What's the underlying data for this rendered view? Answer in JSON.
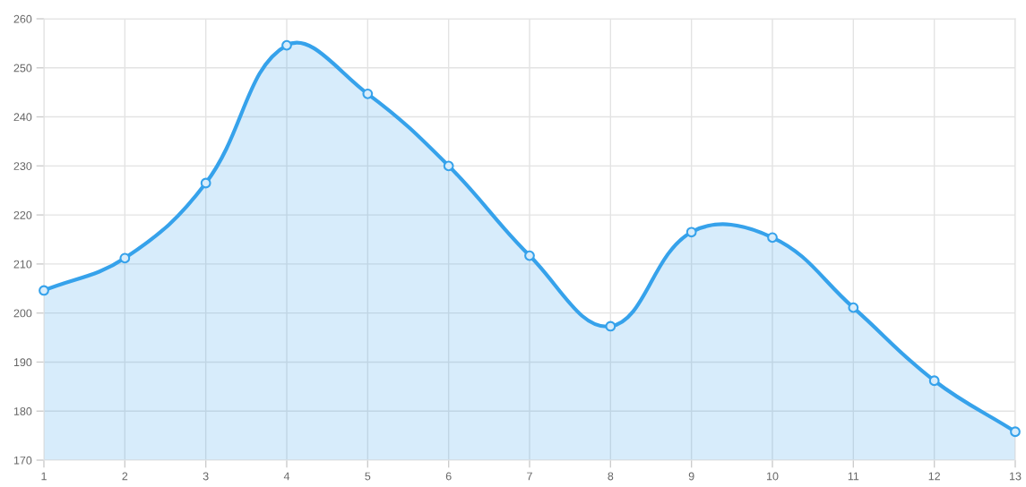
{
  "chart_data": {
    "type": "area",
    "x": [
      1,
      2,
      3,
      4,
      5,
      6,
      7,
      8,
      9,
      10,
      11,
      12,
      13
    ],
    "series": [
      {
        "color": "#36a2eb",
        "values": [
          204.6,
          211.2,
          226.5,
          254.6,
          244.7,
          230.0,
          211.7,
          197.3,
          216.5,
          215.4,
          201.1,
          186.2,
          175.8
        ]
      }
    ],
    "xlim": [
      1,
      13
    ],
    "xticks": [
      1,
      2,
      3,
      4,
      5,
      6,
      7,
      8,
      9,
      10,
      11,
      12,
      13
    ],
    "ylim": [
      170,
      260
    ],
    "yticks": [
      170,
      180,
      190,
      200,
      210,
      220,
      230,
      240,
      250,
      260
    ],
    "grid": true,
    "marker": "circle",
    "line_style": "solid"
  }
}
